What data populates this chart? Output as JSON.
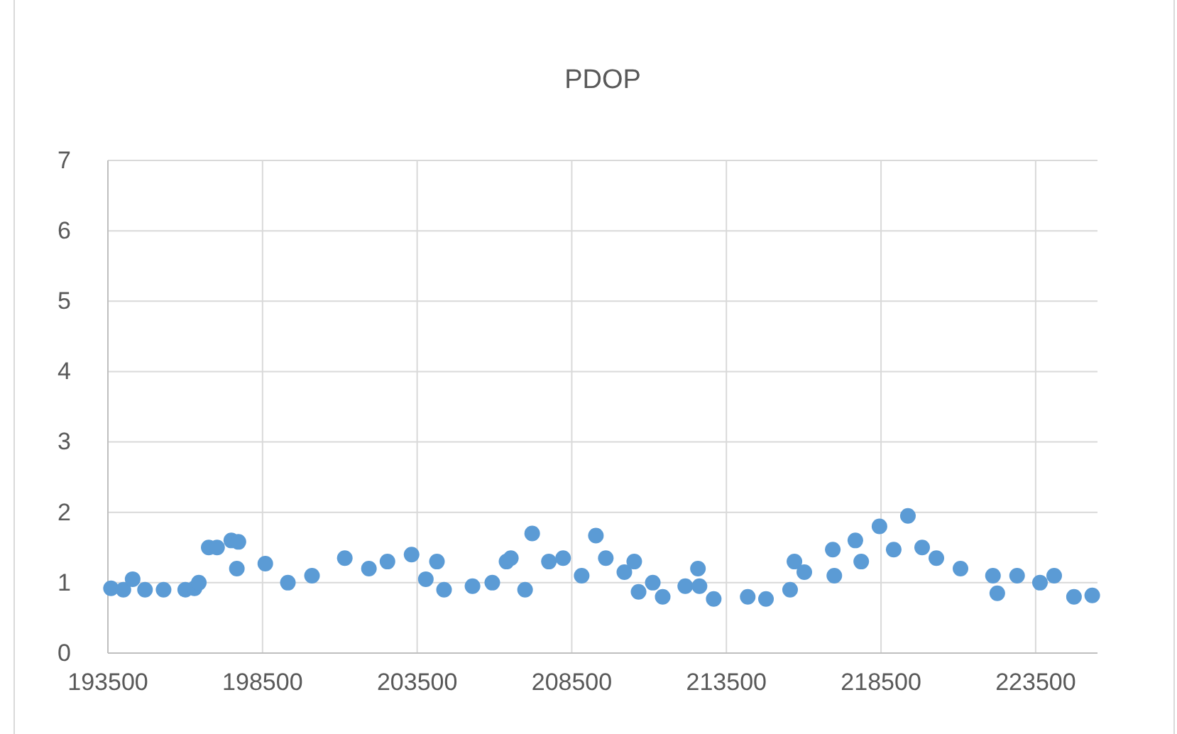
{
  "chart_data": {
    "type": "scatter",
    "title": "PDOP",
    "x": [
      193600,
      194000,
      194300,
      194700,
      195300,
      196000,
      196300,
      196440,
      196760,
      197030,
      197490,
      197720,
      197670,
      198590,
      199320,
      200100,
      201160,
      201940,
      202540,
      203320,
      203780,
      204140,
      204370,
      205290,
      205930,
      206390,
      206530,
      206990,
      207220,
      207760,
      208220,
      208820,
      209280,
      209600,
      210200,
      210520,
      210660,
      211120,
      211440,
      212170,
      212580,
      212630,
      213090,
      214190,
      214780,
      215560,
      215700,
      216020,
      216940,
      216990,
      217670,
      217860,
      218450,
      218910,
      219370,
      219830,
      220290,
      221070,
      222120,
      222260,
      222900,
      223640,
      224100,
      224740,
      225330
    ],
    "series": [
      {
        "color": "#5b9bd5",
        "values": [
          0.92,
          0.9,
          1.05,
          0.9,
          0.9,
          0.9,
          0.92,
          1.0,
          1.5,
          1.5,
          1.6,
          1.58,
          1.2,
          1.27,
          1.0,
          1.1,
          1.35,
          1.2,
          1.3,
          1.4,
          1.05,
          1.3,
          0.9,
          0.95,
          1.0,
          1.3,
          1.35,
          0.9,
          1.7,
          1.3,
          1.35,
          1.1,
          1.67,
          1.35,
          1.15,
          1.3,
          0.87,
          1.0,
          0.8,
          0.95,
          1.2,
          0.95,
          0.77,
          0.8,
          0.77,
          0.9,
          1.3,
          1.15,
          1.47,
          1.1,
          1.6,
          1.3,
          1.8,
          1.47,
          1.95,
          1.5,
          1.35,
          1.2,
          1.1,
          0.85,
          1.1,
          1.0,
          1.1,
          0.8,
          0.82
        ]
      }
    ],
    "xlim": [
      193500,
      225500
    ],
    "xticks": [
      193500,
      198500,
      203500,
      208500,
      213500,
      218500,
      223500
    ],
    "ylim": [
      0,
      7
    ],
    "yticks": [
      0,
      1,
      2,
      3,
      4,
      5,
      6,
      7
    ],
    "grid": true,
    "marker": "circle"
  }
}
